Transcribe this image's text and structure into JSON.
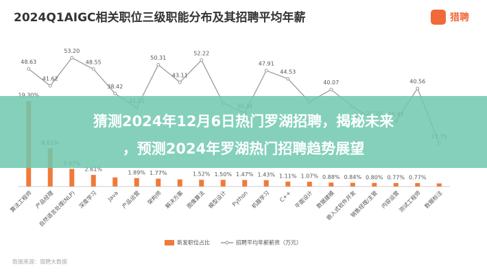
{
  "chart_data": {
    "type": "bar-line",
    "title": "2024Q1AIGC相关职位三级职能分布及其招聘平均年薪",
    "categories": [
      "算法工程师",
      "产品经理",
      "自然语言处理(NLP)",
      "深度学习",
      "Java",
      "产品运营",
      "架构师",
      "解决方案",
      "图像算法",
      "模型设计",
      "Python",
      "机器学习",
      "C++",
      "平面设计",
      "数据建模",
      "嵌入式软件开发",
      "销售经理/主管",
      "内容运营",
      "测试工程师",
      "数据标注"
    ],
    "series": [
      {
        "name": "新发职位占比",
        "color": "#f07a3a",
        "kind": "bar",
        "values": [
          19.3,
          8.61,
          3.97,
          2.61,
          2.05,
          1.89,
          1.77,
          1.6,
          1.52,
          1.5,
          1.47,
          1.43,
          1.11,
          1.07,
          0.88,
          0.84,
          0.8,
          0.77,
          0.77,
          0.7
        ],
        "value_labels": [
          "19.30%",
          "8.61%",
          "3.97%",
          "2.61%",
          null,
          "1.89%",
          "1.77%",
          null,
          "1.52%",
          "1.50%",
          "1.47%",
          "1.43%",
          "1.11%",
          "1.07%",
          "0.88%",
          "0.84%",
          "0.80%",
          "0.77%",
          "0.77%",
          null
        ]
      },
      {
        "name": "招聘平均年薪薪资（万元）",
        "color": "#9a9a9a",
        "kind": "line",
        "axis": "y2",
        "values": [
          48.63,
          41.62,
          53.2,
          48.55,
          38.42,
          32.51,
          50.31,
          43.11,
          52.22,
          34.5,
          30.34,
          47.91,
          44.53,
          35,
          40.07,
          33,
          27.22,
          26.97,
          40.56,
          17.75
        ],
        "value_labels": [
          "48.63",
          "41.62",
          "53.20",
          "48.55",
          "38.42",
          "32.51",
          "50.31",
          "43.11",
          "52.22",
          null,
          "30.34",
          "47.91",
          "44.53",
          null,
          "40.07",
          null,
          "27.22",
          "26.97",
          "40.56",
          "17.75"
        ]
      }
    ],
    "ylim": [
      0,
      30
    ],
    "y2lim": [
      0,
      55
    ]
  },
  "logo": "猎聘",
  "source": "数据来源：猎聘大数据",
  "banner": {
    "line1": "猜测2024年12月6日热门罗湖招聘，揭秘未来",
    "line2": "，预测2024年罗湖热门招聘趋势展望"
  }
}
